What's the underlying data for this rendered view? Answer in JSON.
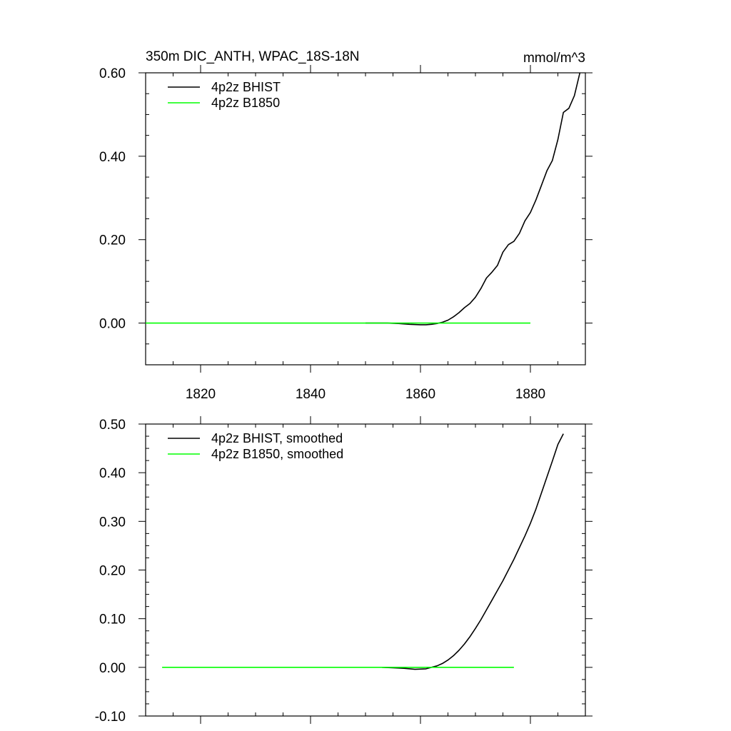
{
  "colors": {
    "bhist": "#000000",
    "b1850": "#00ff00"
  },
  "chart_data": [
    {
      "type": "line",
      "title": "350m DIC_ANTH, WPAC_18S-18N",
      "units": "mmol/m^3",
      "xlim": [
        1810,
        1890
      ],
      "ylim": [
        -0.1,
        0.6
      ],
      "xticks": [
        1820,
        1840,
        1860,
        1880
      ],
      "yticks": [
        0.0,
        0.2,
        0.4,
        0.6
      ],
      "ytick_labels": [
        "0.00",
        "0.20",
        "0.40",
        "0.60"
      ],
      "grid": false,
      "legend_position": "top-left",
      "series": [
        {
          "name": "4p2z BHIST",
          "color": "#000000",
          "x": [
            1850,
            1852,
            1854,
            1856,
            1858,
            1860,
            1861,
            1862,
            1863,
            1864,
            1865,
            1866,
            1867,
            1868,
            1869,
            1870,
            1871,
            1872,
            1873,
            1874,
            1875,
            1876,
            1877,
            1878,
            1879,
            1880,
            1881,
            1882,
            1883,
            1884,
            1885,
            1886,
            1887,
            1888,
            1889
          ],
          "y": [
            0.0,
            0.0,
            0.0,
            -0.001,
            -0.003,
            -0.004,
            -0.004,
            -0.003,
            -0.001,
            0.002,
            0.007,
            0.015,
            0.025,
            0.037,
            0.047,
            0.062,
            0.083,
            0.108,
            0.122,
            0.138,
            0.17,
            0.188,
            0.196,
            0.215,
            0.245,
            0.265,
            0.295,
            0.33,
            0.365,
            0.39,
            0.44,
            0.505,
            0.515,
            0.545,
            0.6
          ]
        },
        {
          "name": "4p2z B1850",
          "color": "#00ff00",
          "x": [
            1810,
            1880
          ],
          "y": [
            0.0,
            0.0
          ]
        }
      ]
    },
    {
      "type": "line",
      "title": "",
      "xlim": [
        1810,
        1890
      ],
      "ylim": [
        -0.1,
        0.5
      ],
      "xticks": [
        1820,
        1840,
        1860,
        1880
      ],
      "yticks": [
        -0.1,
        0.0,
        0.1,
        0.2,
        0.3,
        0.4,
        0.5
      ],
      "ytick_labels": [
        "-0.10",
        "0.00",
        "0.10",
        "0.20",
        "0.30",
        "0.40",
        "0.50"
      ],
      "grid": false,
      "legend_position": "top-left",
      "series": [
        {
          "name": "4p2z BHIST, smoothed",
          "color": "#000000",
          "x": [
            1853,
            1855,
            1857,
            1859,
            1861,
            1862,
            1863,
            1864,
            1865,
            1866,
            1867,
            1868,
            1869,
            1870,
            1871,
            1872,
            1873,
            1874,
            1875,
            1876,
            1877,
            1878,
            1879,
            1880,
            1881,
            1882,
            1883,
            1884,
            1885,
            1886
          ],
          "y": [
            0.0,
            -0.001,
            -0.002,
            -0.004,
            -0.003,
            0.0,
            0.003,
            0.008,
            0.015,
            0.024,
            0.035,
            0.048,
            0.063,
            0.08,
            0.098,
            0.118,
            0.138,
            0.158,
            0.178,
            0.2,
            0.222,
            0.246,
            0.27,
            0.296,
            0.325,
            0.358,
            0.391,
            0.424,
            0.458,
            0.48
          ]
        },
        {
          "name": "4p2z B1850, smoothed",
          "color": "#00ff00",
          "x": [
            1813,
            1877
          ],
          "y": [
            0.0,
            0.0
          ]
        }
      ]
    }
  ]
}
